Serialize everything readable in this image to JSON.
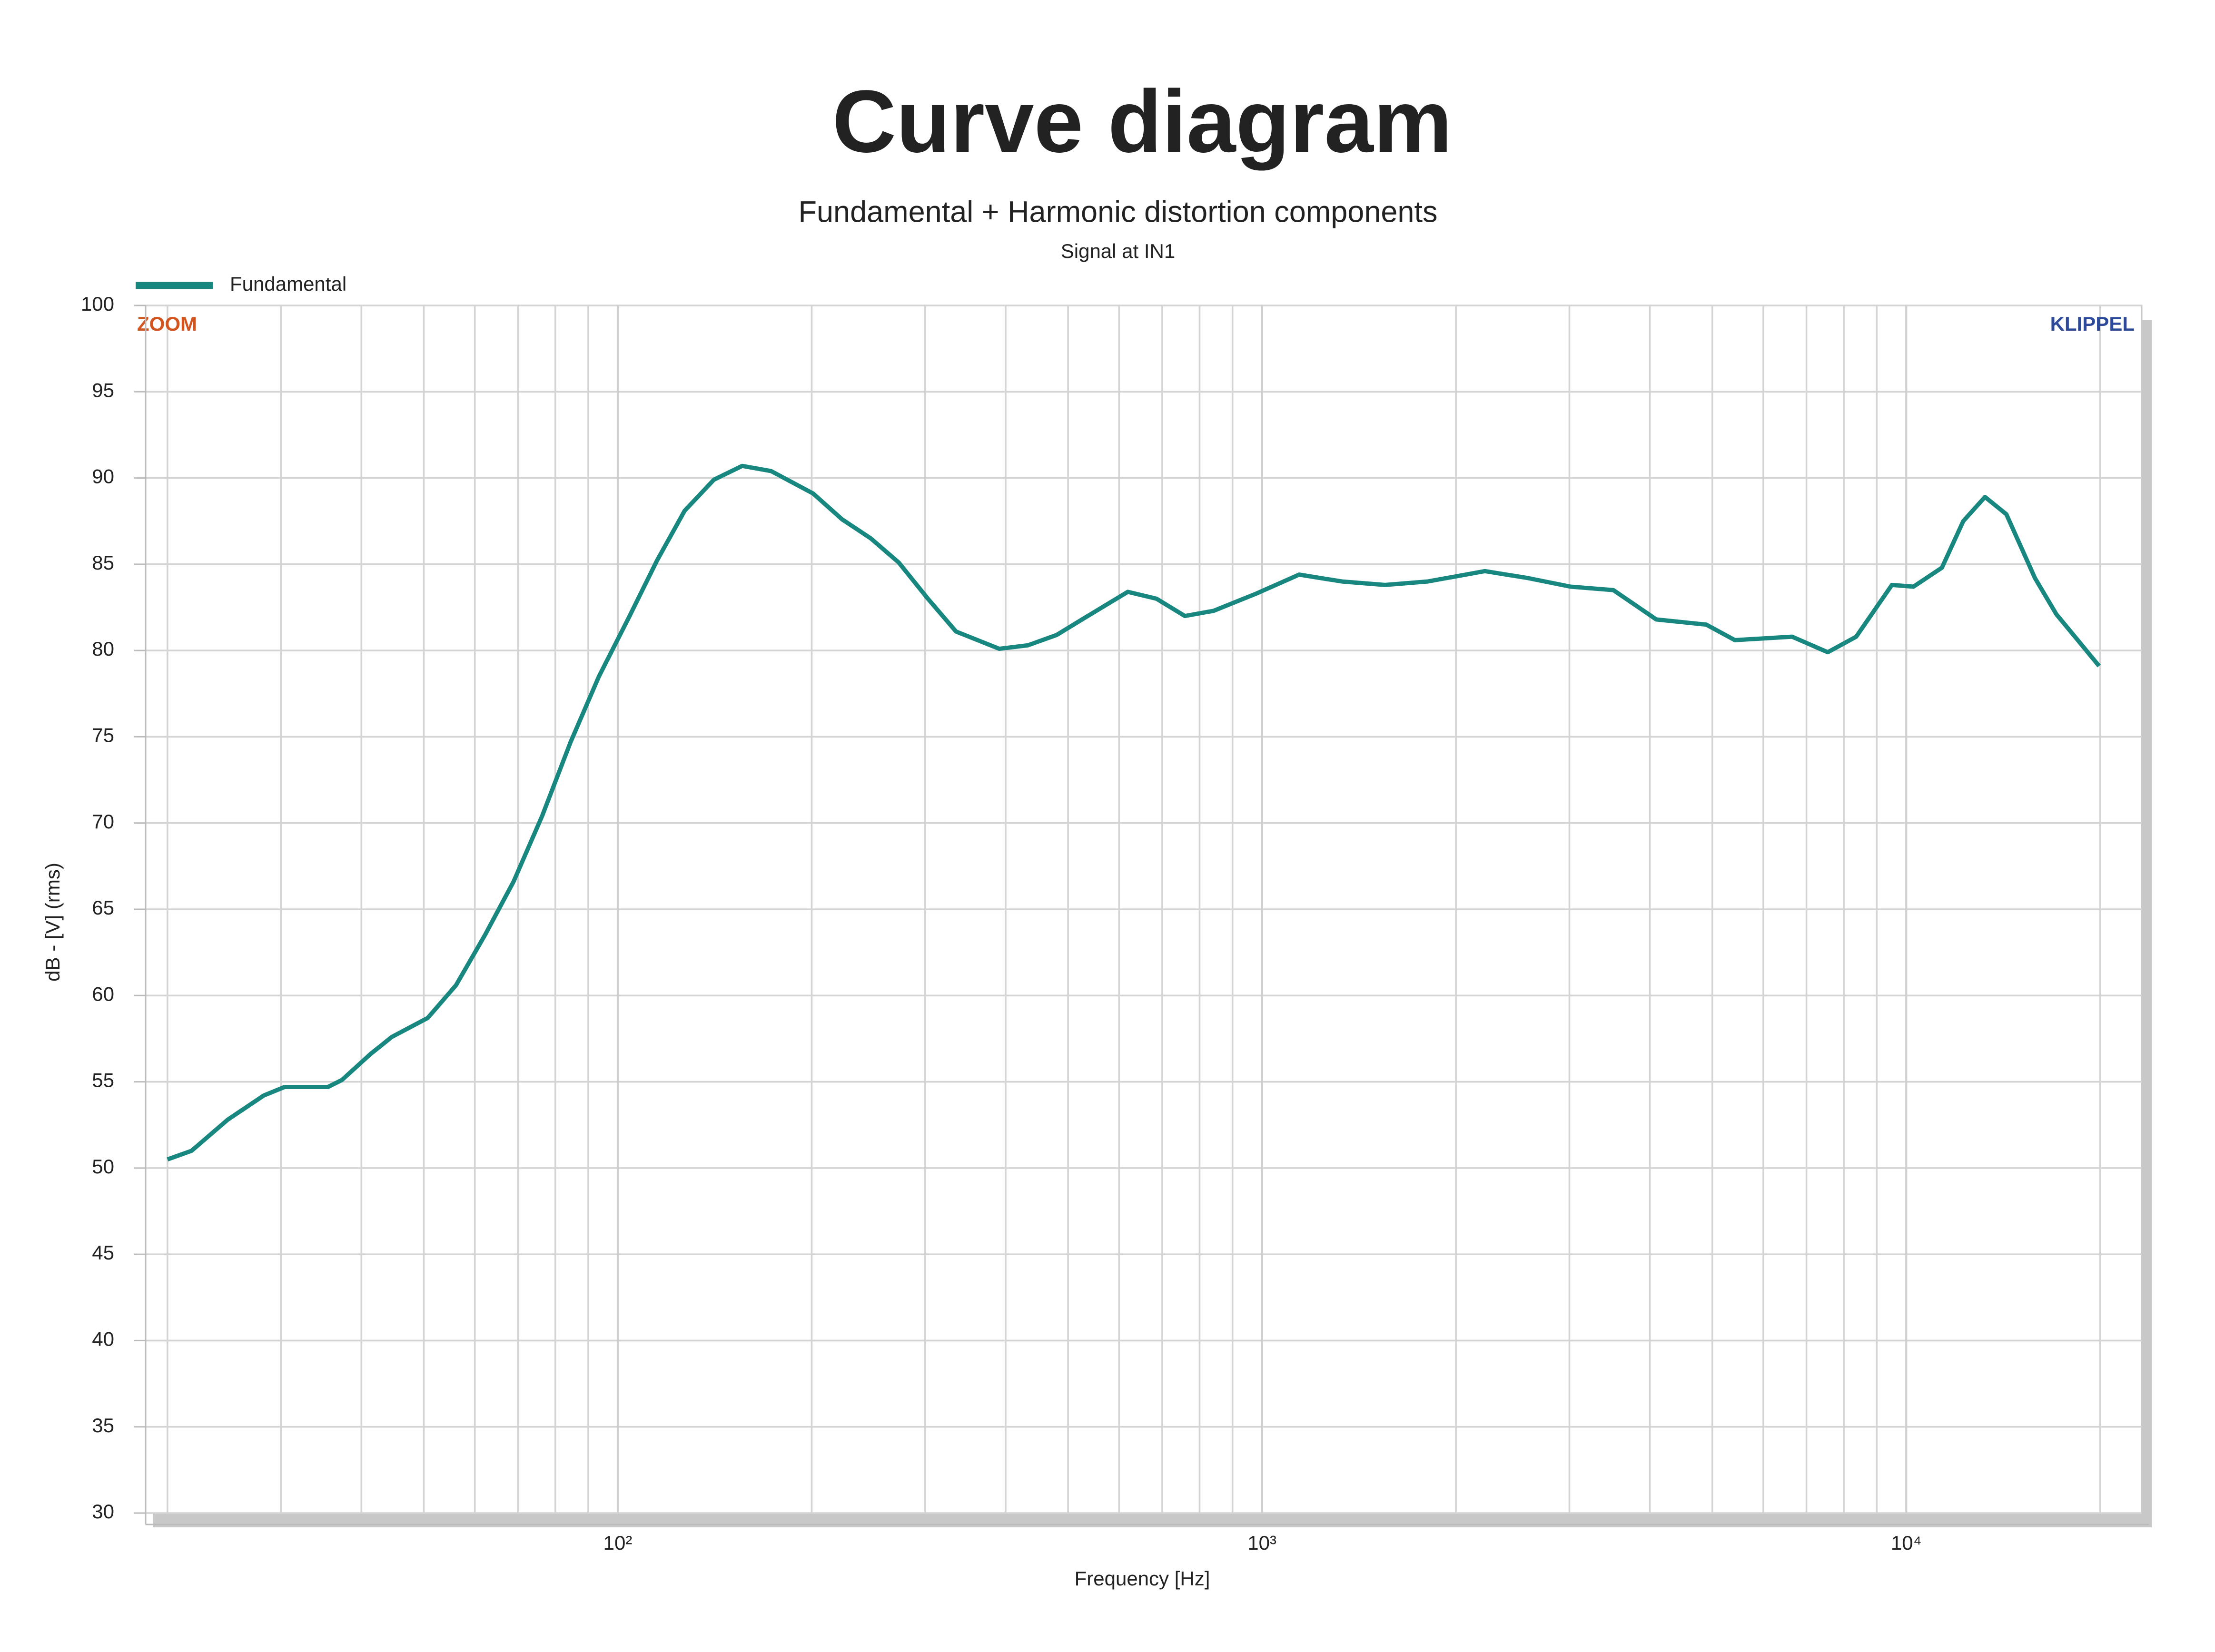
{
  "chart_data": {
    "type": "line",
    "title": "Curve diagram",
    "subtitle": "Fundamental + Harmonic distortion components",
    "note": "Signal at IN1",
    "xlabel": "Frequency [Hz]",
    "ylabel": "dB - [V]  (rms)",
    "annotations": [
      "ZOOM",
      "KLIPPEL"
    ],
    "xscale": "log",
    "grid": true,
    "legend": "top-left",
    "xlim": [
      18.5,
      23200
    ],
    "ylim": [
      30,
      100
    ],
    "xticks": [
      {
        "value": 100,
        "label": "10²"
      },
      {
        "value": 1000,
        "label": "10³"
      },
      {
        "value": 10000,
        "label": "10⁴"
      }
    ],
    "xminorticks": [
      20,
      30,
      40,
      50,
      60,
      70,
      80,
      90,
      200,
      300,
      400,
      500,
      600,
      700,
      800,
      900,
      2000,
      3000,
      4000,
      5000,
      6000,
      7000,
      8000,
      9000,
      20000
    ],
    "yticks": [
      30,
      35,
      40,
      45,
      50,
      55,
      60,
      65,
      70,
      75,
      80,
      85,
      90,
      95,
      100
    ],
    "x": [
      20,
      21.8,
      24.8,
      28.2,
      30.4,
      35.5,
      37.3,
      41.3,
      44.6,
      50.7,
      56.1,
      62.2,
      68.9,
      76.3,
      84.5,
      93.5,
      104,
      115,
      127,
      141,
      156,
      173,
      201,
      223,
      247,
      273,
      303,
      335,
      391,
      433,
      480,
      531,
      619,
      686,
      759,
      841,
      980,
      1142,
      1331,
      1552,
      1808,
      2218,
      2585,
      3013,
      3511,
      4092,
      4894,
      5420,
      6650,
      7553,
      8361,
      9500,
      10260,
      11360,
      12260,
      13250,
      14300,
      15840,
      17100,
      18460,
      19920
    ],
    "series": [
      {
        "name": "Fundamental",
        "color": "#17877f",
        "values": [
          50.5,
          51.0,
          52.8,
          54.2,
          54.7,
          54.7,
          55.1,
          56.6,
          57.6,
          58.7,
          60.6,
          63.5,
          66.6,
          70.4,
          74.7,
          78.5,
          81.9,
          85.2,
          88.1,
          89.9,
          90.7,
          90.4,
          89.1,
          87.6,
          86.5,
          85.1,
          83.0,
          81.1,
          80.1,
          80.3,
          80.9,
          81.9,
          83.4,
          83.0,
          82.0,
          82.3,
          83.3,
          84.4,
          84.0,
          83.8,
          84.0,
          84.6,
          84.2,
          83.7,
          83.5,
          81.8,
          81.5,
          80.6,
          80.8,
          79.9,
          80.8,
          83.8,
          83.7,
          84.8,
          87.5,
          88.9,
          87.9,
          84.2,
          82.1,
          80.6,
          79.1
        ]
      }
    ]
  }
}
